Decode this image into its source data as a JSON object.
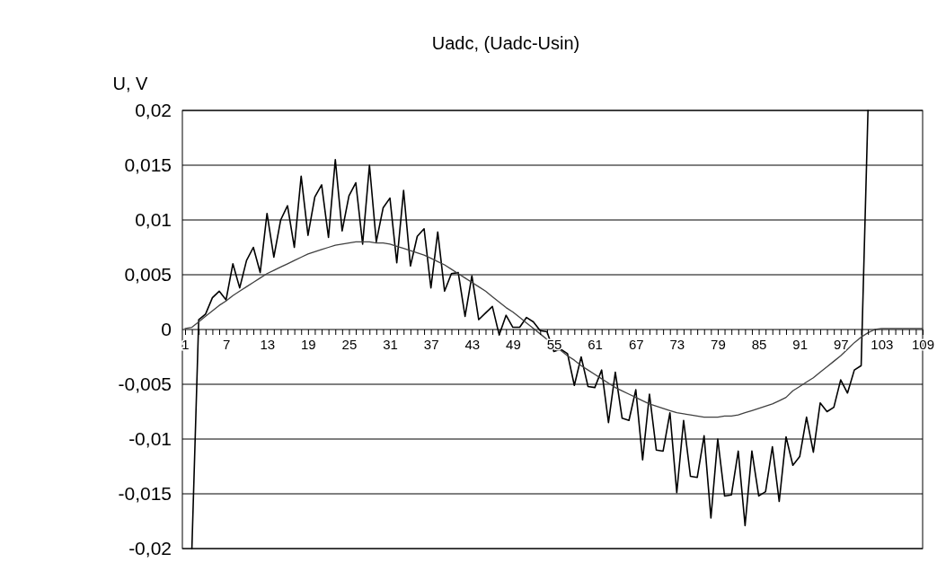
{
  "chart_data": {
    "type": "line",
    "title": "Uadc, (Uadc-Usin)",
    "ylabel": "U, V",
    "categories": [
      "1",
      null,
      null,
      null,
      null,
      null,
      "7",
      null,
      null,
      null,
      null,
      null,
      "13",
      null,
      null,
      null,
      null,
      null,
      "19",
      null,
      null,
      null,
      null,
      null,
      "25",
      null,
      null,
      null,
      null,
      null,
      "31",
      null,
      null,
      null,
      null,
      null,
      "37",
      null,
      null,
      null,
      null,
      null,
      "43",
      null,
      null,
      null,
      null,
      null,
      "49",
      null,
      null,
      null,
      null,
      null,
      "55",
      null,
      null,
      null,
      null,
      null,
      "61",
      null,
      null,
      null,
      null,
      null,
      "67",
      null,
      null,
      null,
      null,
      null,
      "73",
      null,
      null,
      null,
      null,
      null,
      "79",
      null,
      null,
      null,
      null,
      null,
      "85",
      null,
      null,
      null,
      null,
      null,
      "91",
      null,
      null,
      null,
      null,
      null,
      "97",
      null,
      null,
      null,
      null,
      null,
      "103",
      null,
      null,
      null,
      null,
      null,
      "109"
    ],
    "series": [
      {
        "color": "#000000",
        "values": [
          null,
          -0.02,
          0.0009,
          0.0014,
          0.0029,
          0.0035,
          0.0027,
          0.006,
          0.0038,
          0.0063,
          0.0075,
          0.0052,
          0.0106,
          0.0066,
          0.01,
          0.0113,
          0.0075,
          0.014,
          0.0086,
          0.0121,
          0.0132,
          0.0084,
          0.0155,
          0.009,
          0.0122,
          0.0134,
          0.0078,
          0.015,
          0.008,
          0.0111,
          0.012,
          0.0061,
          0.0127,
          0.0058,
          0.0085,
          0.0092,
          0.0038,
          0.0089,
          0.0035,
          0.0051,
          0.0052,
          0.0012,
          0.0049,
          0.0009,
          0.0015,
          0.0021,
          -0.0005,
          0.0013,
          0.0002,
          0.0002,
          0.0011,
          0.0007,
          -0.0001,
          -0.0002,
          -0.002,
          -0.0018,
          -0.0022,
          -0.0051,
          -0.0025,
          -0.0052,
          -0.0053,
          -0.0037,
          -0.0085,
          -0.0039,
          -0.0081,
          -0.0083,
          -0.0055,
          -0.0119,
          -0.0059,
          -0.011,
          -0.0111,
          -0.0076,
          -0.0149,
          -0.0083,
          -0.0134,
          -0.0135,
          -0.0097,
          -0.0172,
          -0.01,
          -0.0152,
          -0.0151,
          -0.0111,
          -0.0179,
          -0.0111,
          -0.0152,
          -0.0148,
          -0.0107,
          -0.0157,
          -0.0098,
          -0.0124,
          -0.0116,
          -0.008,
          -0.0112,
          -0.0067,
          -0.0075,
          -0.0071,
          -0.0046,
          -0.0058,
          -0.0037,
          -0.0033,
          0.02,
          null,
          null,
          null,
          null,
          null,
          null,
          null,
          null
        ]
      },
      {
        "color": "#404040",
        "values": [
          0.0001,
          0.0002,
          0.0007,
          0.0012,
          0.0017,
          0.0022,
          0.0026,
          0.0031,
          0.0035,
          0.0039,
          0.0043,
          0.0047,
          0.0051,
          0.0054,
          0.0057,
          0.006,
          0.0063,
          0.0066,
          0.0069,
          0.0071,
          0.0073,
          0.0075,
          0.0077,
          0.0078,
          0.0079,
          0.008,
          0.008,
          0.008,
          0.0079,
          0.0079,
          0.0078,
          0.0076,
          0.0074,
          0.0072,
          0.007,
          0.0068,
          0.0065,
          0.0062,
          0.0059,
          0.0055,
          0.0051,
          0.0047,
          0.0043,
          0.0039,
          0.0035,
          0.003,
          0.0025,
          0.002,
          0.0016,
          0.0011,
          0.0006,
          0.0001,
          -0.0004,
          -0.0009,
          -0.0015,
          -0.0019,
          -0.0024,
          -0.0028,
          -0.0033,
          -0.0037,
          -0.0041,
          -0.0045,
          -0.0049,
          -0.0053,
          -0.0056,
          -0.0059,
          -0.0062,
          -0.0065,
          -0.0068,
          -0.007,
          -0.0072,
          -0.0074,
          -0.0076,
          -0.0077,
          -0.0078,
          -0.0079,
          -0.008,
          -0.008,
          -0.008,
          -0.0079,
          -0.0079,
          -0.0078,
          -0.0076,
          -0.0074,
          -0.0072,
          -0.007,
          -0.0068,
          -0.0065,
          -0.0062,
          -0.0056,
          -0.0052,
          -0.0048,
          -0.0044,
          -0.0039,
          -0.0034,
          -0.0029,
          -0.0024,
          -0.0018,
          -0.0012,
          -0.0007,
          -0.0003,
          0,
          0.0001,
          0.0001,
          0.0001,
          0.0001,
          0.0001,
          0.0001,
          0.0001
        ]
      }
    ],
    "ylim": [
      -0.02,
      0.02
    ],
    "yticks": [
      {
        "value": -0.02,
        "label": "-0,02"
      },
      {
        "value": -0.015,
        "label": "-0,015"
      },
      {
        "value": -0.01,
        "label": "-0,01"
      },
      {
        "value": -0.005,
        "label": "-0,005"
      },
      {
        "value": 0,
        "label": "0"
      },
      {
        "value": 0.005,
        "label": "0,005"
      },
      {
        "value": 0.01,
        "label": "0,01"
      },
      {
        "value": 0.015,
        "label": "0,015"
      },
      {
        "value": 0.02,
        "label": "0,02"
      }
    ],
    "grid": "y"
  }
}
